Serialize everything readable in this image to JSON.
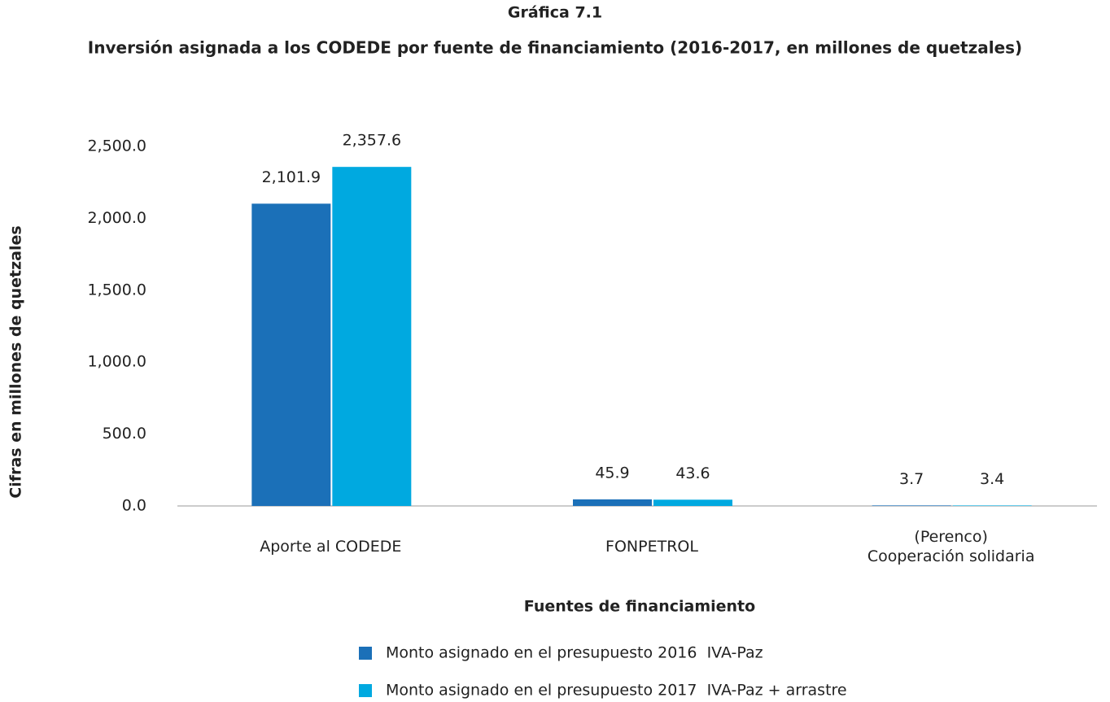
{
  "chart_data": {
    "type": "bar",
    "title": "Gráfica 7.1",
    "subtitle": "Inversión asignada a los CODEDE por fuente de financiamiento (2016-2017, en millones de quetzales)",
    "x_label": "Fuentes de financiamiento",
    "y_label": "Cifras en millones de quetzales",
    "categories": [
      "Aporte al CODEDE",
      "FONPETROL",
      "(Perenco)\nCooperación solidaria"
    ],
    "series": [
      {
        "name": "Monto asignado en el presupuesto 2016  IVA-Paz",
        "color": "#1b70b8",
        "values": [
          2101.9,
          45.9,
          3.7
        ],
        "value_labels": [
          "2,101.9",
          "45.9",
          "3.7"
        ]
      },
      {
        "name": "Monto asignado en el presupuesto 2017  IVA-Paz + arrastre",
        "color": "#00a9e0",
        "values": [
          2357.6,
          43.6,
          3.4
        ],
        "value_labels": [
          "2,357.6",
          "43.6",
          "3.4"
        ]
      }
    ],
    "ylim": [
      0,
      2500
    ],
    "yticks": [
      {
        "value": 0,
        "label": "0.0"
      },
      {
        "value": 500,
        "label": "500.0"
      },
      {
        "value": 1000,
        "label": "1,000.0"
      },
      {
        "value": 1500,
        "label": "1,500.0"
      },
      {
        "value": 2000,
        "label": "2,000.0"
      },
      {
        "value": 2500,
        "label": "2,500.0"
      }
    ],
    "grid": false
  }
}
